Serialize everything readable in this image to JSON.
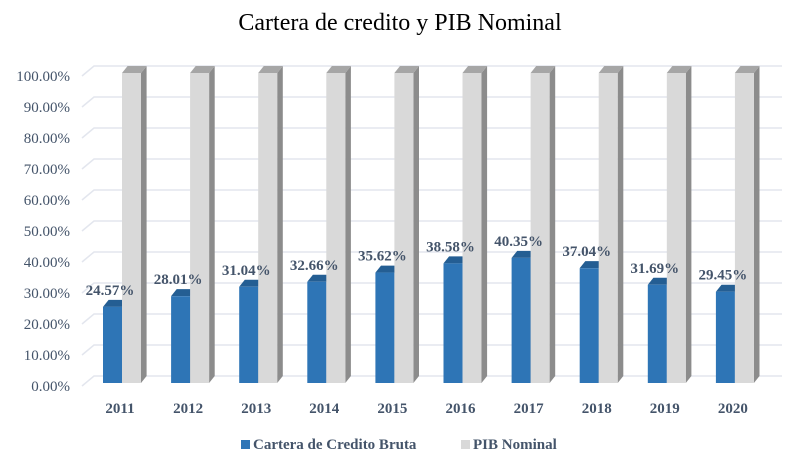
{
  "chart_data": {
    "type": "bar",
    "style": "3d-clustered-column",
    "title": "Cartera de credito y PIB Nominal",
    "categories": [
      "2011",
      "2012",
      "2013",
      "2014",
      "2015",
      "2016",
      "2017",
      "2018",
      "2019",
      "2020"
    ],
    "series": [
      {
        "name": "Cartera de Credito Bruta",
        "color": "#2E75B6",
        "values": [
          24.57,
          28.01,
          31.04,
          32.66,
          35.62,
          38.58,
          40.35,
          37.04,
          31.69,
          29.45
        ],
        "labels": [
          "24.57%",
          "28.01%",
          "31.04%",
          "32.66%",
          "35.62%",
          "38.58%",
          "40.35%",
          "37.04%",
          "31.69%",
          "29.45%"
        ]
      },
      {
        "name": "PIB Nominal",
        "color": "#D9D9D9",
        "values": [
          100,
          100,
          100,
          100,
          100,
          100,
          100,
          100,
          100,
          100
        ]
      }
    ],
    "ylim": [
      0,
      100
    ],
    "yticks": [
      "0.00%",
      "10.00%",
      "20.00%",
      "30.00%",
      "40.00%",
      "50.00%",
      "60.00%",
      "70.00%",
      "80.00%",
      "90.00%",
      "100.00%"
    ],
    "grid": true,
    "legend": "bottom"
  }
}
